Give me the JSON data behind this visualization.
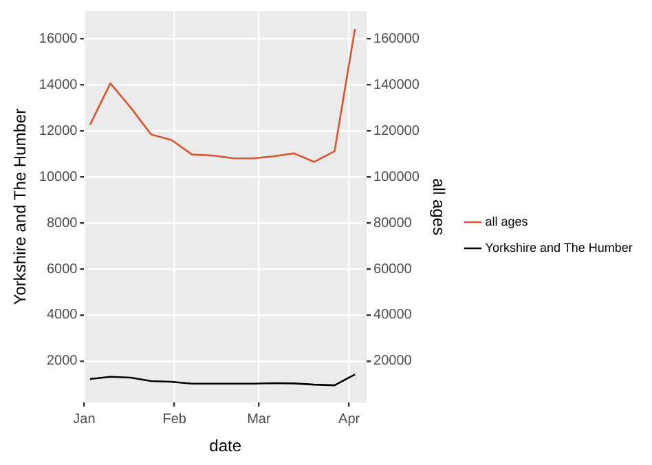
{
  "chart_data": {
    "type": "line",
    "xlabel": "date",
    "ylabel": "Yorkshire and The Humber",
    "y2label": "all ages",
    "x": [
      "--01-03",
      "--01-10",
      "--01-17",
      "--01-24",
      "--01-31",
      "--02-07",
      "--02-14",
      "--02-21",
      "--02-28",
      "--03-06",
      "--03-13",
      "--03-20",
      "--03-27",
      "--04-03"
    ],
    "series": [
      {
        "name": "all ages",
        "color": "#d9542c",
        "axis": "y2",
        "values": [
          122600,
          140600,
          130000,
          118400,
          116000,
          109700,
          109300,
          108100,
          108000,
          108900,
          110200,
          106500,
          111100,
          164200
        ]
      },
      {
        "name": "Yorkshire and The Humber",
        "color": "#000000",
        "values": [
          1220,
          1320,
          1280,
          1130,
          1100,
          1020,
          1020,
          1020,
          1020,
          1040,
          1030,
          980,
          950,
          1420
        ]
      }
    ],
    "xlim": [
      "--01-01",
      "--04-07"
    ],
    "xticks": [
      {
        "value": "--01-01",
        "label": "Jan"
      },
      {
        "value": "--02-01",
        "label": "Feb"
      },
      {
        "value": "--03-01",
        "label": "Mar"
      },
      {
        "value": "--04-01",
        "label": "Apr"
      }
    ],
    "ylim": [
      200,
      17200
    ],
    "yticks": [
      2000,
      4000,
      6000,
      8000,
      10000,
      12000,
      14000,
      16000
    ],
    "y2lim": [
      2000,
      172000
    ],
    "y2ticks": [
      20000,
      40000,
      60000,
      80000,
      100000,
      120000,
      140000,
      160000
    ],
    "grid": true,
    "legend": "right",
    "marker": "none",
    "line_style": "solid"
  }
}
